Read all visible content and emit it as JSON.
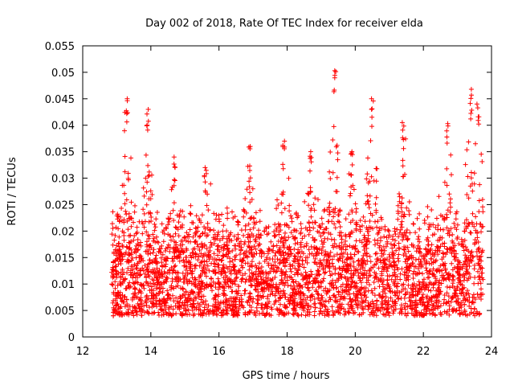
{
  "chart_data": {
    "type": "scatter",
    "title": "Day 002 of 2018, Rate Of TEC Index for receiver elda",
    "xlabel": "GPS time / hours",
    "ylabel": "ROTI / TECUs",
    "xlim": [
      12,
      24
    ],
    "ylim": [
      0,
      0.055
    ],
    "x_ticks": [
      "12",
      "14",
      "16",
      "18",
      "20",
      "22",
      "24"
    ],
    "y_ticks": [
      "0",
      "0.005",
      "0.01",
      "0.015",
      "0.02",
      "0.025",
      "0.03",
      "0.035",
      "0.04",
      "0.045",
      "0.05",
      "0.055"
    ],
    "marker": "+",
    "grid": false,
    "series": [
      {
        "name": "ROTI",
        "color": "#ff0000",
        "x_range": [
          12.85,
          23.75
        ],
        "baseline_min": 0.004,
        "baseline_max": 0.025,
        "peaks": [
          {
            "x": 13.3,
            "y": 0.045
          },
          {
            "x": 13.9,
            "y": 0.043
          },
          {
            "x": 14.7,
            "y": 0.034
          },
          {
            "x": 15.6,
            "y": 0.032
          },
          {
            "x": 16.9,
            "y": 0.036
          },
          {
            "x": 17.9,
            "y": 0.037
          },
          {
            "x": 18.7,
            "y": 0.035
          },
          {
            "x": 19.4,
            "y": 0.0503
          },
          {
            "x": 19.9,
            "y": 0.035
          },
          {
            "x": 20.5,
            "y": 0.045
          },
          {
            "x": 21.4,
            "y": 0.0405
          },
          {
            "x": 22.7,
            "y": 0.0403
          },
          {
            "x": 23.4,
            "y": 0.0468
          },
          {
            "x": 23.6,
            "y": 0.044
          }
        ]
      }
    ]
  }
}
